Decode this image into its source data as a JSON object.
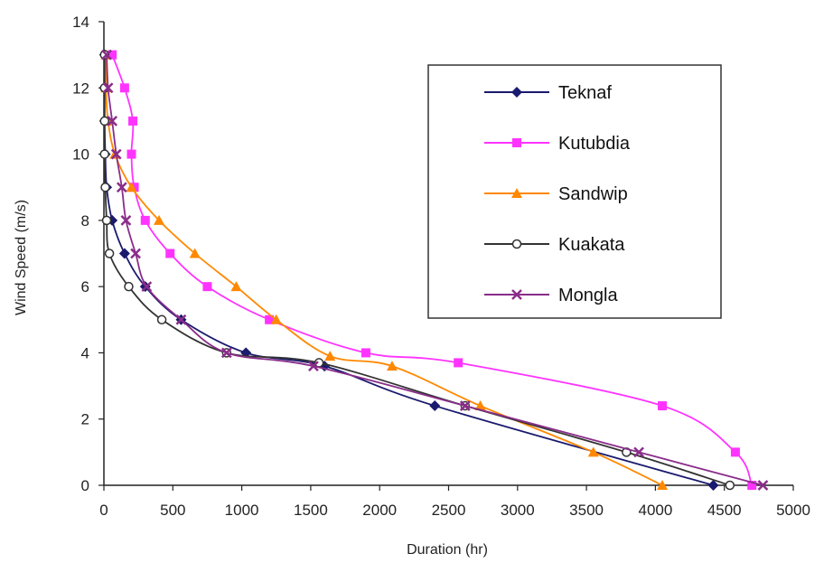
{
  "chart_data": {
    "type": "line",
    "xlabel": "Duration (hr)",
    "ylabel": "Wind Speed (m/s)",
    "xlim": [
      0,
      5000
    ],
    "ylim": [
      0,
      14
    ],
    "x_ticks": [
      0,
      500,
      1000,
      1500,
      2000,
      2500,
      3000,
      3500,
      4000,
      4500,
      5000
    ],
    "y_ticks": [
      0,
      2,
      4,
      6,
      8,
      10,
      12,
      14
    ],
    "grid": false,
    "legend_position": "top-right",
    "series": [
      {
        "name": "Teknaf",
        "color": "#1a1a6e",
        "marker": "diamond",
        "points": [
          [
            4420,
            0
          ],
          [
            2400,
            2.4
          ],
          [
            1600,
            3.6
          ],
          [
            1030,
            4
          ],
          [
            560,
            5
          ],
          [
            300,
            6
          ],
          [
            150,
            7
          ],
          [
            60,
            8
          ],
          [
            20,
            9
          ],
          [
            10,
            10
          ],
          [
            5,
            11
          ],
          [
            5,
            12
          ],
          [
            5,
            13
          ]
        ]
      },
      {
        "name": "Kutubdia",
        "color": "#ff33ff",
        "marker": "square",
        "points": [
          [
            4700,
            0
          ],
          [
            4580,
            1
          ],
          [
            4050,
            2.4
          ],
          [
            2570,
            3.7
          ],
          [
            1900,
            4
          ],
          [
            1200,
            5
          ],
          [
            750,
            6
          ],
          [
            480,
            7
          ],
          [
            300,
            8
          ],
          [
            220,
            9
          ],
          [
            200,
            10
          ],
          [
            210,
            11
          ],
          [
            150,
            12
          ],
          [
            60,
            13
          ]
        ]
      },
      {
        "name": "Sandwip",
        "color": "#ff8800",
        "marker": "triangle",
        "points": [
          [
            4050,
            0
          ],
          [
            3550,
            1
          ],
          [
            2730,
            2.4
          ],
          [
            2090,
            3.6
          ],
          [
            1640,
            3.9
          ],
          [
            1250,
            5
          ],
          [
            960,
            6
          ],
          [
            660,
            7
          ],
          [
            400,
            8
          ],
          [
            200,
            9
          ],
          [
            80,
            10
          ],
          [
            30,
            11
          ],
          [
            15,
            12
          ],
          [
            15,
            13
          ]
        ]
      },
      {
        "name": "Kuakata",
        "color": "#333333",
        "marker": "circle",
        "points": [
          [
            4540,
            0
          ],
          [
            3790,
            1
          ],
          [
            2620,
            2.4
          ],
          [
            1560,
            3.7
          ],
          [
            890,
            4
          ],
          [
            420,
            5
          ],
          [
            180,
            6
          ],
          [
            40,
            7
          ],
          [
            20,
            8
          ],
          [
            10,
            9
          ],
          [
            5,
            10
          ],
          [
            5,
            11
          ],
          [
            5,
            12
          ],
          [
            5,
            13
          ]
        ]
      },
      {
        "name": "Mongla",
        "color": "#8a2d8a",
        "marker": "x",
        "points": [
          [
            4780,
            0
          ],
          [
            3880,
            1
          ],
          [
            2620,
            2.4
          ],
          [
            1520,
            3.6
          ],
          [
            890,
            4
          ],
          [
            560,
            5
          ],
          [
            310,
            6
          ],
          [
            230,
            7
          ],
          [
            160,
            8
          ],
          [
            130,
            9
          ],
          [
            90,
            10
          ],
          [
            60,
            11
          ],
          [
            30,
            12
          ],
          [
            20,
            13
          ]
        ]
      }
    ]
  }
}
